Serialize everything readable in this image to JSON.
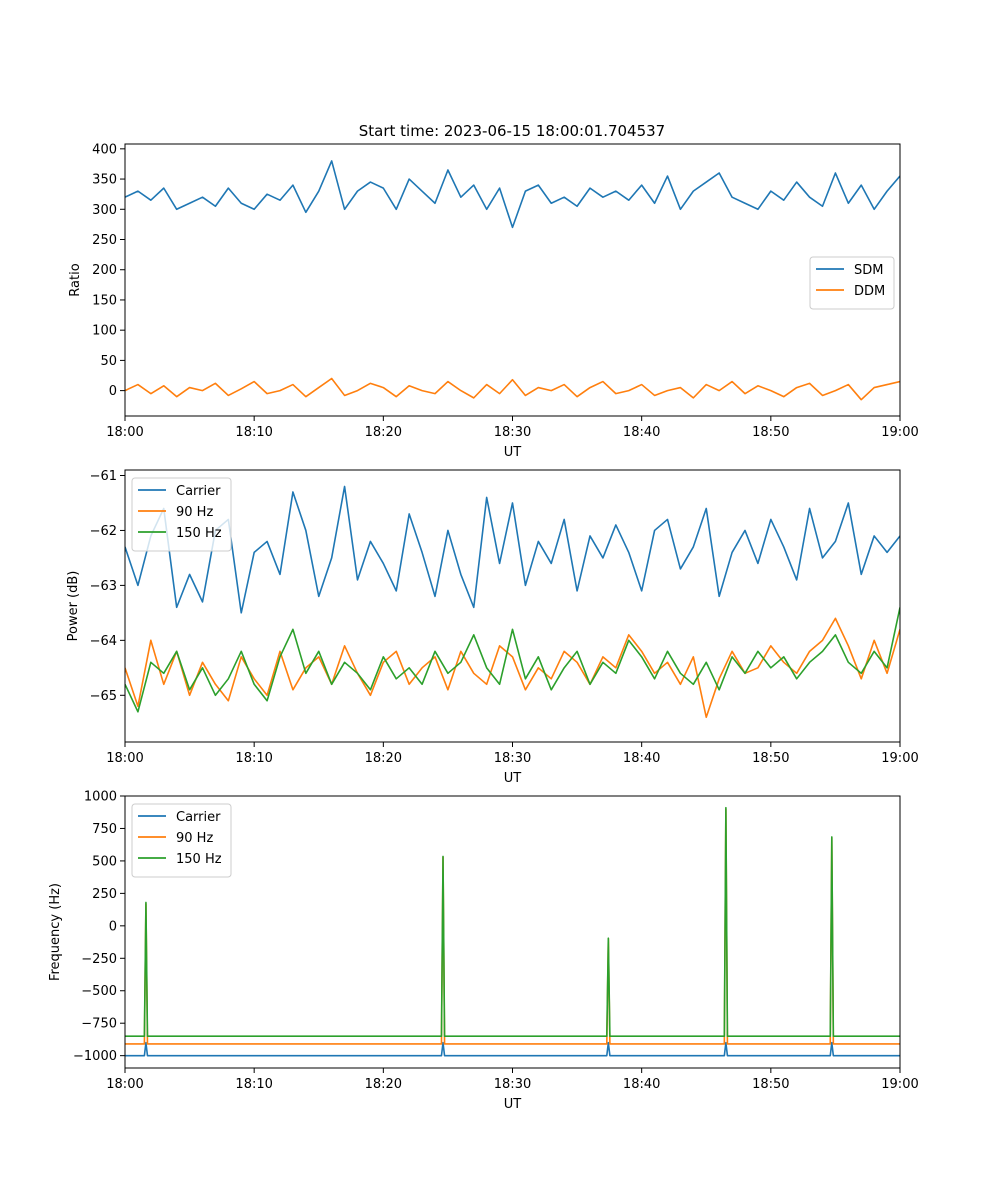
{
  "title": "Start time: 2023-06-15 18:00:01.704537",
  "colors": {
    "blue": "#1f77b4",
    "orange": "#ff7f0e",
    "green": "#2ca02c"
  },
  "chart_data": [
    {
      "type": "line",
      "xlabel": "UT",
      "ylabel": "Ratio",
      "xlim": [
        0,
        60
      ],
      "ylim": [
        -42,
        408
      ],
      "xticks": [
        "18:00",
        "18:10",
        "18:20",
        "18:30",
        "18:40",
        "18:50",
        "19:00"
      ],
      "yticks": [
        0,
        50,
        100,
        150,
        200,
        250,
        300,
        350,
        400
      ],
      "legend_position": "center-right",
      "series": [
        {
          "name": "SDM",
          "color": "#1f77b4",
          "x": [
            0,
            1,
            2,
            3,
            4,
            5,
            6,
            7,
            8,
            9,
            10,
            11,
            12,
            13,
            14,
            15,
            16,
            17,
            18,
            19,
            20,
            21,
            22,
            23,
            24,
            25,
            26,
            27,
            28,
            29,
            30,
            31,
            32,
            33,
            34,
            35,
            36,
            37,
            38,
            39,
            40,
            41,
            42,
            43,
            44,
            45,
            46,
            47,
            48,
            49,
            50,
            51,
            52,
            53,
            54,
            55,
            56,
            57,
            58,
            59,
            60
          ],
          "values": [
            320,
            330,
            315,
            335,
            300,
            310,
            320,
            305,
            335,
            310,
            300,
            325,
            315,
            340,
            295,
            330,
            380,
            300,
            330,
            345,
            335,
            300,
            350,
            330,
            310,
            365,
            320,
            340,
            300,
            335,
            270,
            330,
            340,
            310,
            320,
            305,
            335,
            320,
            330,
            315,
            340,
            310,
            355,
            300,
            330,
            345,
            360,
            320,
            310,
            300,
            330,
            315,
            345,
            320,
            305,
            360,
            310,
            340,
            300,
            330,
            355
          ]
        },
        {
          "name": "DDM",
          "color": "#ff7f0e",
          "x": [
            0,
            1,
            2,
            3,
            4,
            5,
            6,
            7,
            8,
            9,
            10,
            11,
            12,
            13,
            14,
            15,
            16,
            17,
            18,
            19,
            20,
            21,
            22,
            23,
            24,
            25,
            26,
            27,
            28,
            29,
            30,
            31,
            32,
            33,
            34,
            35,
            36,
            37,
            38,
            39,
            40,
            41,
            42,
            43,
            44,
            45,
            46,
            47,
            48,
            49,
            50,
            51,
            52,
            53,
            54,
            55,
            56,
            57,
            58,
            59,
            60
          ],
          "values": [
            0,
            10,
            -5,
            8,
            -10,
            5,
            0,
            12,
            -8,
            3,
            15,
            -5,
            0,
            10,
            -10,
            5,
            20,
            -8,
            0,
            12,
            5,
            -10,
            8,
            0,
            -5,
            15,
            0,
            -12,
            10,
            -5,
            18,
            -8,
            5,
            0,
            10,
            -10,
            5,
            15,
            -5,
            0,
            10,
            -8,
            0,
            5,
            -12,
            10,
            0,
            15,
            -5,
            8,
            0,
            -10,
            5,
            12,
            -8,
            0,
            10,
            -15,
            5,
            10,
            15
          ]
        }
      ]
    },
    {
      "type": "line",
      "xlabel": "UT",
      "ylabel": "Power (dB)",
      "xlim": [
        0,
        60
      ],
      "ylim": [
        -65.85,
        -60.9
      ],
      "xticks": [
        "18:00",
        "18:10",
        "18:20",
        "18:30",
        "18:40",
        "18:50",
        "19:00"
      ],
      "yticks": [
        -65,
        -64,
        -63,
        -62,
        -61
      ],
      "legend_position": "upper-left",
      "series": [
        {
          "name": "Carrier",
          "color": "#1f77b4",
          "x": [
            0,
            1,
            2,
            3,
            4,
            5,
            6,
            7,
            8,
            9,
            10,
            11,
            12,
            13,
            14,
            15,
            16,
            17,
            18,
            19,
            20,
            21,
            22,
            23,
            24,
            25,
            26,
            27,
            28,
            29,
            30,
            31,
            32,
            33,
            34,
            35,
            36,
            37,
            38,
            39,
            40,
            41,
            42,
            43,
            44,
            45,
            46,
            47,
            48,
            49,
            50,
            51,
            52,
            53,
            54,
            55,
            56,
            57,
            58,
            59,
            60
          ],
          "values": [
            -62.3,
            -63.0,
            -62.1,
            -61.6,
            -63.4,
            -62.8,
            -63.3,
            -62.0,
            -61.8,
            -63.5,
            -62.4,
            -62.2,
            -62.8,
            -61.3,
            -62.0,
            -63.2,
            -62.5,
            -61.2,
            -62.9,
            -62.2,
            -62.6,
            -63.1,
            -61.7,
            -62.4,
            -63.2,
            -62.0,
            -62.8,
            -63.4,
            -61.4,
            -62.6,
            -61.5,
            -63.0,
            -62.2,
            -62.6,
            -61.8,
            -63.1,
            -62.1,
            -62.5,
            -61.9,
            -62.4,
            -63.1,
            -62.0,
            -61.8,
            -62.7,
            -62.3,
            -61.6,
            -63.2,
            -62.4,
            -62.0,
            -62.6,
            -61.8,
            -62.3,
            -62.9,
            -61.6,
            -62.5,
            -62.2,
            -61.5,
            -62.8,
            -62.1,
            -62.4,
            -62.1
          ]
        },
        {
          "name": "90 Hz",
          "color": "#ff7f0e",
          "x": [
            0,
            1,
            2,
            3,
            4,
            5,
            6,
            7,
            8,
            9,
            10,
            11,
            12,
            13,
            14,
            15,
            16,
            17,
            18,
            19,
            20,
            21,
            22,
            23,
            24,
            25,
            26,
            27,
            28,
            29,
            30,
            31,
            32,
            33,
            34,
            35,
            36,
            37,
            38,
            39,
            40,
            41,
            42,
            43,
            44,
            45,
            46,
            47,
            48,
            49,
            50,
            51,
            52,
            53,
            54,
            55,
            56,
            57,
            58,
            59,
            60
          ],
          "values": [
            -64.5,
            -65.2,
            -64.0,
            -64.8,
            -64.2,
            -65.0,
            -64.4,
            -64.8,
            -65.1,
            -64.3,
            -64.7,
            -65.0,
            -64.2,
            -64.9,
            -64.5,
            -64.3,
            -64.8,
            -64.1,
            -64.6,
            -65.0,
            -64.4,
            -64.2,
            -64.8,
            -64.5,
            -64.3,
            -64.9,
            -64.2,
            -64.6,
            -64.8,
            -64.1,
            -64.3,
            -64.9,
            -64.5,
            -64.7,
            -64.2,
            -64.4,
            -64.8,
            -64.3,
            -64.5,
            -63.9,
            -64.2,
            -64.6,
            -64.4,
            -64.8,
            -64.3,
            -65.4,
            -64.7,
            -64.2,
            -64.6,
            -64.5,
            -64.1,
            -64.4,
            -64.6,
            -64.2,
            -64.0,
            -63.6,
            -64.1,
            -64.7,
            -64.0,
            -64.6,
            -63.8
          ]
        },
        {
          "name": "150 Hz",
          "color": "#2ca02c",
          "x": [
            0,
            1,
            2,
            3,
            4,
            5,
            6,
            7,
            8,
            9,
            10,
            11,
            12,
            13,
            14,
            15,
            16,
            17,
            18,
            19,
            20,
            21,
            22,
            23,
            24,
            25,
            26,
            27,
            28,
            29,
            30,
            31,
            32,
            33,
            34,
            35,
            36,
            37,
            38,
            39,
            40,
            41,
            42,
            43,
            44,
            45,
            46,
            47,
            48,
            49,
            50,
            51,
            52,
            53,
            54,
            55,
            56,
            57,
            58,
            59,
            60
          ],
          "values": [
            -64.8,
            -65.3,
            -64.4,
            -64.6,
            -64.2,
            -64.9,
            -64.5,
            -65.0,
            -64.7,
            -64.2,
            -64.8,
            -65.1,
            -64.3,
            -63.8,
            -64.6,
            -64.2,
            -64.8,
            -64.4,
            -64.6,
            -64.9,
            -64.3,
            -64.7,
            -64.5,
            -64.8,
            -64.2,
            -64.6,
            -64.4,
            -63.9,
            -64.5,
            -64.8,
            -63.8,
            -64.7,
            -64.3,
            -64.9,
            -64.5,
            -64.2,
            -64.8,
            -64.4,
            -64.6,
            -64.0,
            -64.3,
            -64.7,
            -64.2,
            -64.6,
            -64.8,
            -64.4,
            -64.9,
            -64.3,
            -64.6,
            -64.2,
            -64.5,
            -64.3,
            -64.7,
            -64.4,
            -64.2,
            -63.9,
            -64.4,
            -64.6,
            -64.2,
            -64.5,
            -63.4
          ]
        }
      ]
    },
    {
      "type": "line",
      "xlabel": "UT",
      "ylabel": "Frequency (Hz)",
      "xlim": [
        0,
        60
      ],
      "ylim": [
        -1095,
        1000
      ],
      "xticks": [
        "18:00",
        "18:10",
        "18:20",
        "18:30",
        "18:40",
        "18:50",
        "19:00"
      ],
      "yticks": [
        -1000,
        -750,
        -500,
        -250,
        0,
        250,
        500,
        750,
        1000
      ],
      "legend_position": "upper-left",
      "series": [
        {
          "name": "Carrier",
          "color": "#1f77b4",
          "x": [
            0,
            1.5,
            1.62,
            1.74,
            24.5,
            24.62,
            24.74,
            37.3,
            37.42,
            37.54,
            46.4,
            46.52,
            46.64,
            54.6,
            54.72,
            54.84,
            60
          ],
          "values": [
            -1000,
            -1000,
            -900,
            -1000,
            -1000,
            -900,
            -1000,
            -1000,
            -900,
            -1000,
            -1000,
            -900,
            -1000,
            -1000,
            -900,
            -1000,
            -1000
          ]
        },
        {
          "name": "90 Hz",
          "color": "#ff7f0e",
          "x": [
            0,
            1.5,
            1.62,
            1.74,
            24.5,
            24.62,
            24.74,
            37.3,
            37.42,
            37.54,
            46.4,
            46.52,
            46.64,
            54.6,
            54.72,
            54.84,
            60
          ],
          "values": [
            -910,
            -910,
            170,
            -910,
            -910,
            530,
            -910,
            -910,
            -100,
            -910,
            -910,
            900,
            -910,
            -910,
            680,
            -910,
            -910
          ]
        },
        {
          "name": "150 Hz",
          "color": "#2ca02c",
          "x": [
            0,
            1.5,
            1.62,
            1.74,
            24.5,
            24.62,
            24.74,
            37.3,
            37.42,
            37.54,
            46.4,
            46.52,
            46.64,
            54.6,
            54.72,
            54.84,
            60
          ],
          "values": [
            -850,
            -850,
            180,
            -850,
            -850,
            535,
            -850,
            -850,
            -95,
            -850,
            -850,
            910,
            -850,
            -850,
            685,
            -850,
            -850
          ]
        }
      ]
    }
  ]
}
